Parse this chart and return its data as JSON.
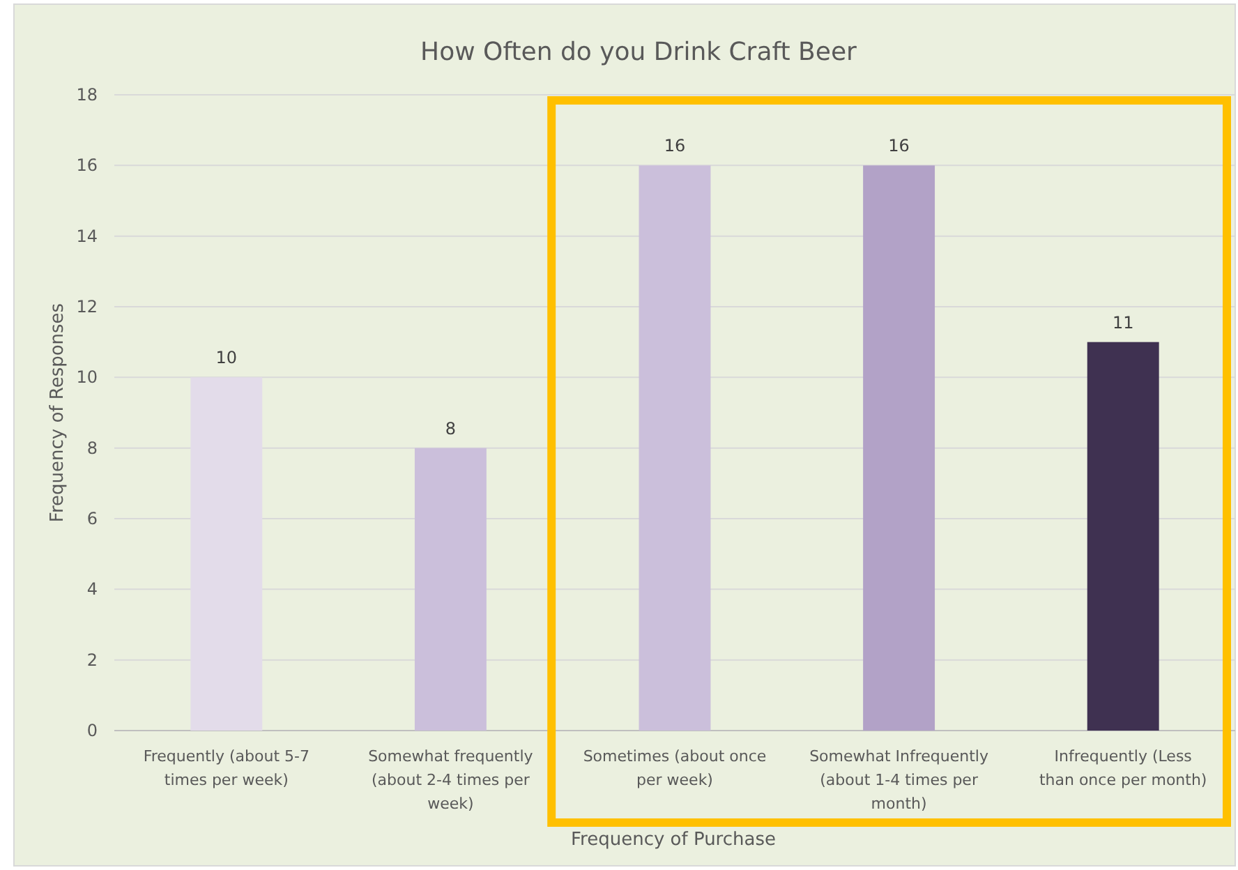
{
  "chart_data": {
    "type": "bar",
    "title": "How Often do you Drink Craft Beer",
    "xlabel": "Frequency of Purchase",
    "ylabel": "Frequency of Responses",
    "categories": [
      "Frequently (about 5-7 times per week)",
      "Somewhat frequently (about 2-4 times per week)",
      "Sometimes (about once per week)",
      "Somewhat Infrequently (about 1-4 times per month)",
      "Infrequently (Less than once per month)"
    ],
    "values": [
      10,
      8,
      16,
      16,
      11
    ],
    "colors": [
      "#e3dcea",
      "#cbbfdb",
      "#cbbfdb",
      "#b2a2c7",
      "#3f3151"
    ],
    "ylim": [
      0,
      18
    ],
    "yticks": [
      0,
      2,
      4,
      6,
      8,
      10,
      12,
      14,
      16,
      18
    ],
    "grid": "y",
    "data_labels": true
  }
}
